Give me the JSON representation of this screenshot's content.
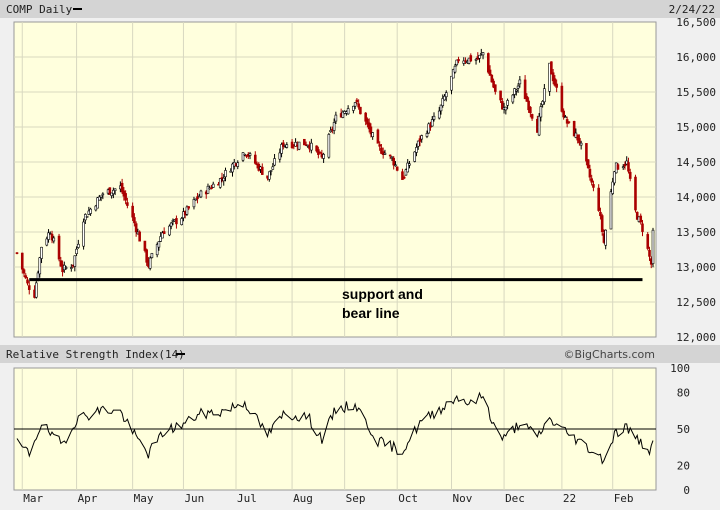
{
  "header": {
    "symbol_label": "COMP Daily",
    "date": "2/24/22"
  },
  "rsi_header": {
    "label": "Relative Strength Index(14)",
    "credit": "©BigCharts.com"
  },
  "annotation": {
    "line1": "support and",
    "line2": "bear line",
    "level": 12820
  },
  "colors": {
    "panel_bg": "#ffffdd",
    "up": "#000000",
    "down": "#aa0000",
    "grid": "#d8d8c0",
    "frame_bg": "#f0f0f0"
  },
  "chart_data": [
    {
      "type": "candlestick",
      "title": "COMP Daily",
      "ylim": [
        12000,
        16500
      ],
      "yticks": [
        12000,
        12500,
        13000,
        13500,
        14000,
        14500,
        15000,
        15500,
        16000,
        16500
      ],
      "ytick_labels": [
        "12,000",
        "12,500",
        "13,000",
        "13,500",
        "14,000",
        "14,500",
        "15,000",
        "15,500",
        "16,000",
        "16,500"
      ],
      "x_start": "2021-02-26",
      "x_end": "2022-02-24",
      "month_labels": [
        "Mar",
        "Apr",
        "May",
        "Jun",
        "Jul",
        "Aug",
        "Sep",
        "Oct",
        "Nov",
        "Dec",
        "22",
        "Feb"
      ],
      "month_dates": [
        "2021-03-01",
        "2021-04-01",
        "2021-05-03",
        "2021-06-01",
        "2021-07-01",
        "2021-08-02",
        "2021-09-01",
        "2021-10-01",
        "2021-11-01",
        "2021-12-01",
        "2022-01-03",
        "2022-02-01"
      ],
      "close_waypoints": [
        [
          "2021-02-26",
          13200
        ],
        [
          "2021-03-04",
          12750
        ],
        [
          "2021-03-08",
          12610
        ],
        [
          "2021-03-12",
          13300
        ],
        [
          "2021-03-17",
          13520
        ],
        [
          "2021-03-24",
          12960
        ],
        [
          "2021-03-30",
          13040
        ],
        [
          "2021-04-05",
          13700
        ],
        [
          "2021-04-16",
          14050
        ],
        [
          "2021-04-26",
          14140
        ],
        [
          "2021-05-04",
          13630
        ],
        [
          "2021-05-12",
          13030
        ],
        [
          "2021-05-20",
          13500
        ],
        [
          "2021-06-01",
          13740
        ],
        [
          "2021-06-10",
          14020
        ],
        [
          "2021-06-22",
          14250
        ],
        [
          "2021-07-06",
          14660
        ],
        [
          "2021-07-19",
          14280
        ],
        [
          "2021-07-28",
          14760
        ],
        [
          "2021-08-11",
          14770
        ],
        [
          "2021-08-19",
          14550
        ],
        [
          "2021-08-27",
          15130
        ],
        [
          "2021-09-07",
          15370
        ],
        [
          "2021-09-20",
          14710
        ],
        [
          "2021-09-28",
          14550
        ],
        [
          "2021-10-04",
          14260
        ],
        [
          "2021-10-14",
          14820
        ],
        [
          "2021-10-25",
          15220
        ],
        [
          "2021-11-05",
          15970
        ],
        [
          "2021-11-16",
          15970
        ],
        [
          "2021-11-19",
          16060
        ],
        [
          "2021-11-26",
          15490
        ],
        [
          "2021-12-01",
          15250
        ],
        [
          "2021-12-10",
          15630
        ],
        [
          "2021-12-20",
          14980
        ],
        [
          "2021-12-27",
          15870
        ],
        [
          "2022-01-05",
          15100
        ],
        [
          "2022-01-13",
          14800
        ],
        [
          "2022-01-24",
          13850
        ],
        [
          "2022-01-27",
          13350
        ],
        [
          "2022-02-02",
          14420
        ],
        [
          "2022-02-09",
          14490
        ],
        [
          "2022-02-14",
          13790
        ],
        [
          "2022-02-18",
          13550
        ],
        [
          "2022-02-23",
          13040
        ],
        [
          "2022-02-24",
          13470
        ]
      ]
    },
    {
      "type": "line",
      "title": "Relative Strength Index(14)",
      "ylim": [
        0,
        100
      ],
      "yticks": [
        0,
        20,
        50,
        80,
        100
      ],
      "reference_line": 50,
      "rsi_waypoints": [
        [
          "2021-02-26",
          38
        ],
        [
          "2021-03-05",
          30
        ],
        [
          "2021-03-12",
          55
        ],
        [
          "2021-03-19",
          42
        ],
        [
          "2021-03-24",
          38
        ],
        [
          "2021-04-01",
          58
        ],
        [
          "2021-04-16",
          66
        ],
        [
          "2021-04-26",
          64
        ],
        [
          "2021-05-04",
          45
        ],
        [
          "2021-05-12",
          30
        ],
        [
          "2021-05-21",
          48
        ],
        [
          "2021-06-01",
          54
        ],
        [
          "2021-06-10",
          62
        ],
        [
          "2021-06-22",
          64
        ],
        [
          "2021-07-06",
          72
        ],
        [
          "2021-07-19",
          45
        ],
        [
          "2021-07-28",
          62
        ],
        [
          "2021-08-11",
          60
        ],
        [
          "2021-08-19",
          42
        ],
        [
          "2021-08-27",
          66
        ],
        [
          "2021-09-07",
          70
        ],
        [
          "2021-09-20",
          40
        ],
        [
          "2021-10-04",
          32
        ],
        [
          "2021-10-14",
          55
        ],
        [
          "2021-10-25",
          66
        ],
        [
          "2021-11-05",
          77
        ],
        [
          "2021-11-12",
          70
        ],
        [
          "2021-11-19",
          78
        ],
        [
          "2021-11-26",
          50
        ],
        [
          "2021-12-01",
          42
        ],
        [
          "2021-12-10",
          55
        ],
        [
          "2021-12-20",
          44
        ],
        [
          "2021-12-27",
          58
        ],
        [
          "2022-01-05",
          48
        ],
        [
          "2022-01-13",
          40
        ],
        [
          "2022-01-27",
          25
        ],
        [
          "2022-02-02",
          46
        ],
        [
          "2022-02-09",
          52
        ],
        [
          "2022-02-14",
          42
        ],
        [
          "2022-02-18",
          38
        ],
        [
          "2022-02-23",
          32
        ],
        [
          "2022-02-24",
          38
        ]
      ]
    }
  ]
}
